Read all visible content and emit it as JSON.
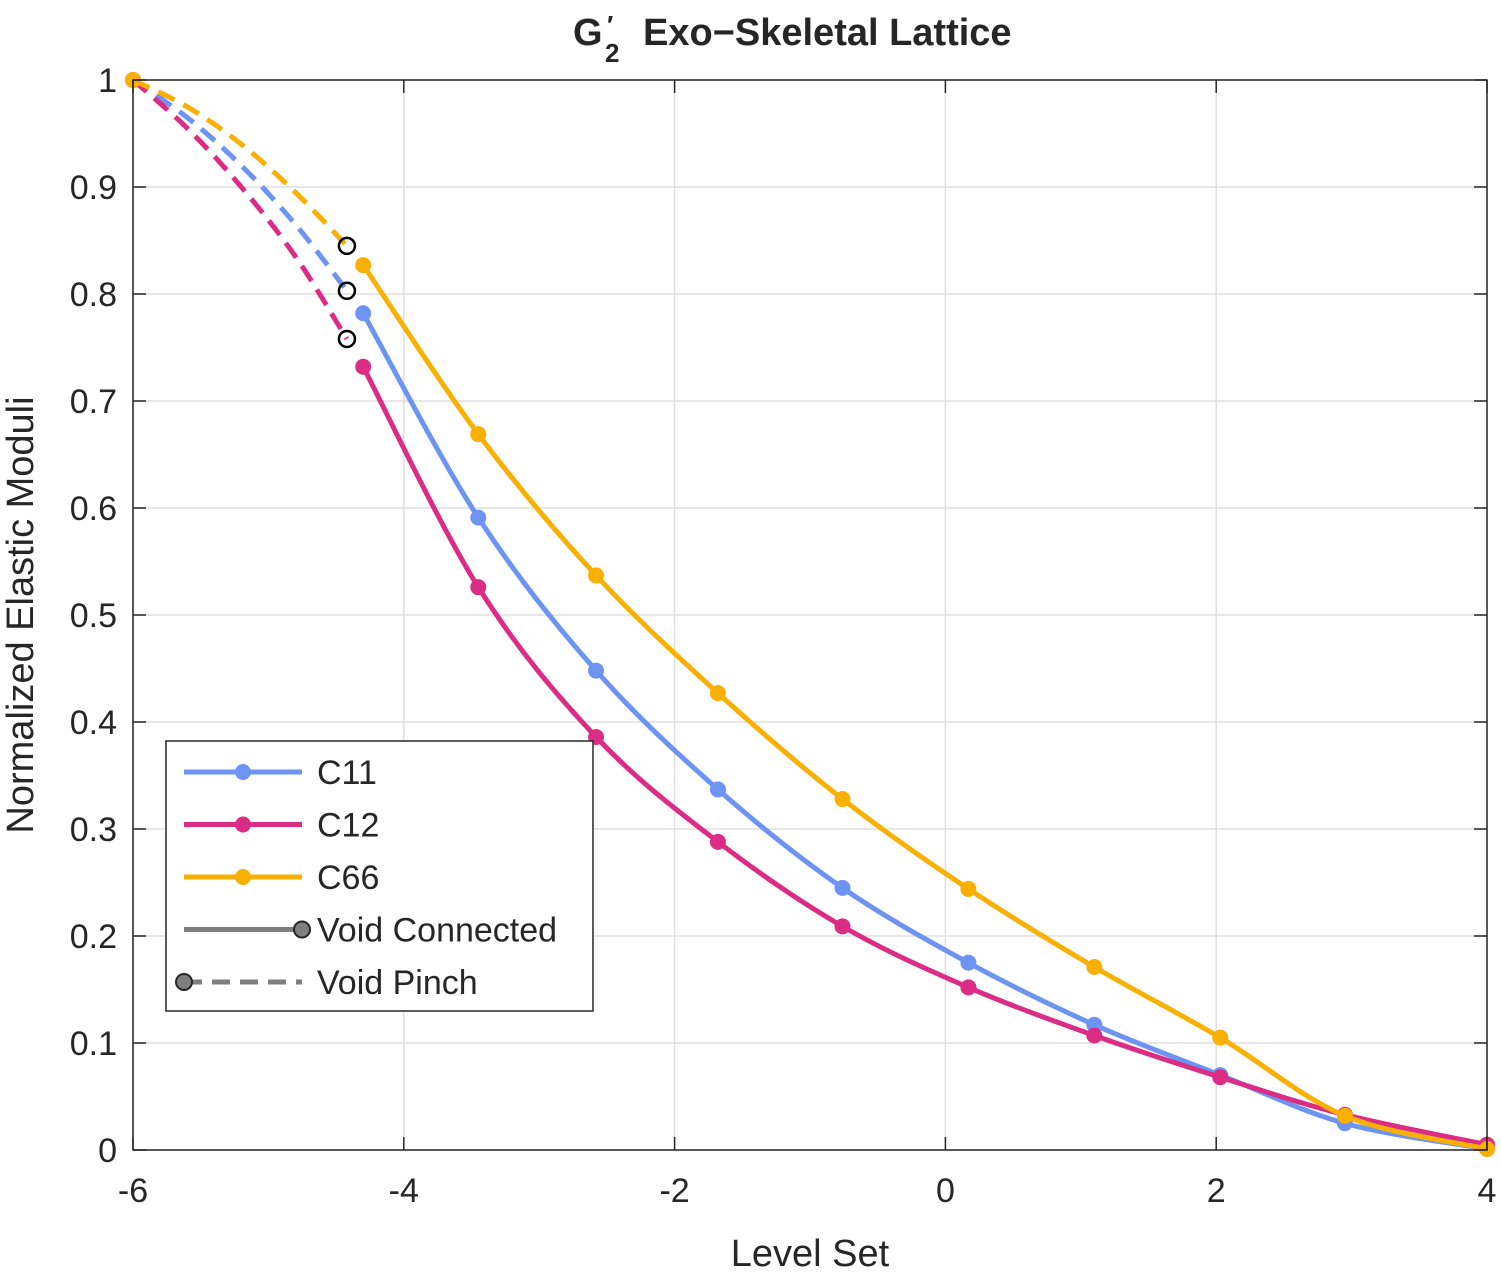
{
  "chart_data": {
    "type": "line",
    "title": "Exo−Skeletal Lattice",
    "title_symbol": {
      "base": "G",
      "prime": "′",
      "subscript": "2"
    },
    "xlabel": "Level Set",
    "ylabel": "Normalized Elastic Moduli",
    "xlim": [
      -6,
      4
    ],
    "ylim": [
      0,
      1
    ],
    "x_ticks": [
      -6,
      -4,
      -2,
      0,
      2,
      4
    ],
    "x_tick_labels": [
      "-6",
      "-4",
      "-2",
      "0",
      "2",
      "4"
    ],
    "y_ticks": [
      0,
      0.1,
      0.2,
      0.3,
      0.4,
      0.5,
      0.6,
      0.7,
      0.8,
      0.9,
      1
    ],
    "y_tick_labels": [
      "0",
      "0.1",
      "0.2",
      "0.3",
      "0.4",
      "0.5",
      "0.6",
      "0.7",
      "0.8",
      "0.9",
      "1"
    ],
    "grid": true,
    "legend_position": "bottom-left",
    "colors": {
      "C11": "#6d94f2",
      "C12": "#dc2d86",
      "C66": "#fab002",
      "grid": "#dfdfdf",
      "axis": "#262626",
      "legend_gray": "#7f7f7f"
    },
    "series": [
      {
        "name": "C11",
        "pinch_x": [
          -6,
          -5.6,
          -5.2,
          -4.8,
          -4.42
        ],
        "pinch_y": [
          1,
          0.965,
          0.92,
          0.865,
          0.803
        ],
        "x": [
          -4.3,
          -3.45,
          -2.58,
          -1.68,
          -0.76,
          0.17,
          1.1,
          2.03,
          2.95,
          4
        ],
        "y": [
          0.782,
          0.591,
          0.448,
          0.337,
          0.245,
          0.175,
          0.117,
          0.07,
          0.025,
          0.001
        ]
      },
      {
        "name": "C12",
        "pinch_x": [
          -6,
          -5.6,
          -5.2,
          -4.8,
          -4.42
        ],
        "pinch_y": [
          1,
          0.955,
          0.9,
          0.835,
          0.758
        ],
        "x": [
          -4.3,
          -3.45,
          -2.58,
          -1.68,
          -0.76,
          0.17,
          1.1,
          2.03,
          2.95,
          4
        ],
        "y": [
          0.732,
          0.526,
          0.386,
          0.288,
          0.209,
          0.152,
          0.107,
          0.068,
          0.033,
          0.005
        ]
      },
      {
        "name": "C66",
        "pinch_x": [
          -6,
          -5.6,
          -5.2,
          -4.8,
          -4.42
        ],
        "pinch_y": [
          1,
          0.975,
          0.94,
          0.895,
          0.845
        ],
        "x": [
          -4.3,
          -3.45,
          -2.58,
          -1.68,
          -0.76,
          0.17,
          1.1,
          2.03,
          2.95,
          4
        ],
        "y": [
          0.827,
          0.669,
          0.537,
          0.427,
          0.328,
          0.244,
          0.171,
          0.105,
          0.032,
          0.001
        ]
      }
    ],
    "pinch_markers": {
      "x": -4.42,
      "y": [
        0.845,
        0.803,
        0.758
      ]
    },
    "legend": [
      {
        "label": "C11",
        "style": "solid-marker",
        "color": "#6d94f2"
      },
      {
        "label": "C12",
        "style": "solid-marker",
        "color": "#dc2d86"
      },
      {
        "label": "C66",
        "style": "solid-marker",
        "color": "#fab002"
      },
      {
        "label": "Void Connected",
        "style": "solid-end-marker",
        "color": "#7f7f7f"
      },
      {
        "label": "Void Pinch",
        "style": "dashed-start-marker",
        "color": "#7f7f7f"
      }
    ]
  }
}
